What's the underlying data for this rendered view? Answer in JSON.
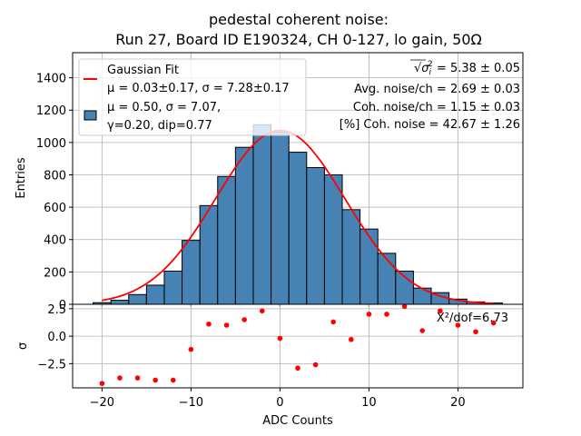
{
  "chart_data": [
    {
      "type": "bar",
      "panel": "top",
      "title": "pedestal coherent noise:",
      "subtitle": "Run 27, Board ID E190324, CH 0-127, lo gain, 50Ω",
      "xlabel": "",
      "ylabel": "Entries",
      "xlim": [
        -23.3,
        27.3
      ],
      "ylim": [
        0,
        1555
      ],
      "grid": true,
      "xticks": [
        -20,
        -10,
        0,
        10,
        20
      ],
      "yticks": [
        0,
        200,
        400,
        600,
        800,
        1000,
        1200,
        1400
      ],
      "ytick_labels": [
        "0",
        "200",
        "400",
        "600",
        "800",
        "1000",
        "1200",
        "1400"
      ],
      "bin_width": 2,
      "categories": [
        -20,
        -18,
        -16,
        -14,
        -12,
        -10,
        -8,
        -6,
        -4,
        -2,
        0,
        2,
        4,
        6,
        8,
        10,
        12,
        14,
        16,
        18,
        20,
        22,
        24
      ],
      "series": [
        {
          "name": "Histogram",
          "kind": "histogram",
          "color": "#4682b4",
          "edgecolor": "#000000",
          "legend_label": [
            "μ = 0.50, σ = 7.07,",
            "γ=0.20, dip=0.77"
          ],
          "values": [
            10,
            25,
            60,
            118,
            205,
            395,
            610,
            790,
            970,
            1110,
            1065,
            940,
            845,
            800,
            585,
            465,
            315,
            205,
            100,
            72,
            32,
            15,
            8
          ]
        },
        {
          "name": "Gaussian Fit",
          "kind": "line",
          "color": "#ff0000",
          "legend_label": [
            "Gaussian Fit",
            "μ = 0.03±0.17, σ = 7.28±0.17"
          ],
          "mu": 0.03,
          "sigma": 7.28,
          "amplitude": 1075,
          "x": [
            -20,
            -18,
            -16,
            -14,
            -12,
            -10,
            -8,
            -6,
            -4,
            -2,
            0,
            2,
            4,
            6,
            8,
            10,
            12,
            14,
            16,
            18,
            20,
            22,
            24
          ],
          "values": [
            24,
            50,
            95,
            170,
            280,
            420,
            600,
            770,
            925,
            1035,
            1075,
            1035,
            925,
            770,
            600,
            420,
            280,
            170,
            95,
            50,
            24,
            11,
            5
          ]
        }
      ],
      "legend": {
        "placement": "top-left"
      },
      "annotations": [
        {
          "id": "sigma-sq",
          "prefix": "√",
          "symbol": "σ",
          "sub": "i",
          "sup": "2",
          "text": " = 5.38 ± 0.05"
        },
        {
          "id": "avg-noise",
          "text": "Avg. noise/ch = 2.69 ± 0.03"
        },
        {
          "id": "coh-noise",
          "text": "Coh. noise/ch = 1.15 ± 0.03"
        },
        {
          "id": "pct-coh",
          "text": "[%] Coh. noise = 42.67  ± 1.26"
        }
      ]
    },
    {
      "type": "scatter",
      "panel": "bottom",
      "xlabel": "ADC Counts",
      "ylabel": "σ",
      "xlim": [
        -23.3,
        27.3
      ],
      "ylim": [
        -4.7,
        2.9
      ],
      "grid": true,
      "xticks": [
        -20,
        -10,
        0,
        10,
        20
      ],
      "xtick_labels": [
        "−20",
        "−10",
        "0",
        "10",
        "20"
      ],
      "yticks": [
        2.5,
        0.0,
        -2.5
      ],
      "ytick_labels": [
        "2.5",
        "0.0",
        "−2.5"
      ],
      "series": [
        {
          "name": "Residuals",
          "color": "#ff0000",
          "x": [
            -20,
            -18,
            -16,
            -14,
            -12,
            -10,
            -8,
            -6,
            -4,
            -2,
            0,
            2,
            4,
            6,
            8,
            10,
            12,
            14,
            16,
            18,
            20,
            22,
            24
          ],
          "values": [
            -4.3,
            -3.8,
            -3.8,
            -4.0,
            -4.0,
            -1.2,
            1.1,
            1.0,
            1.5,
            2.3,
            -0.2,
            -2.9,
            -2.6,
            1.3,
            -0.3,
            2.0,
            2.0,
            2.7,
            0.5,
            2.3,
            1.0,
            0.4,
            1.2
          ]
        }
      ],
      "annotations": [
        {
          "id": "chi2",
          "text": "X²/dof=6.73"
        }
      ]
    }
  ]
}
